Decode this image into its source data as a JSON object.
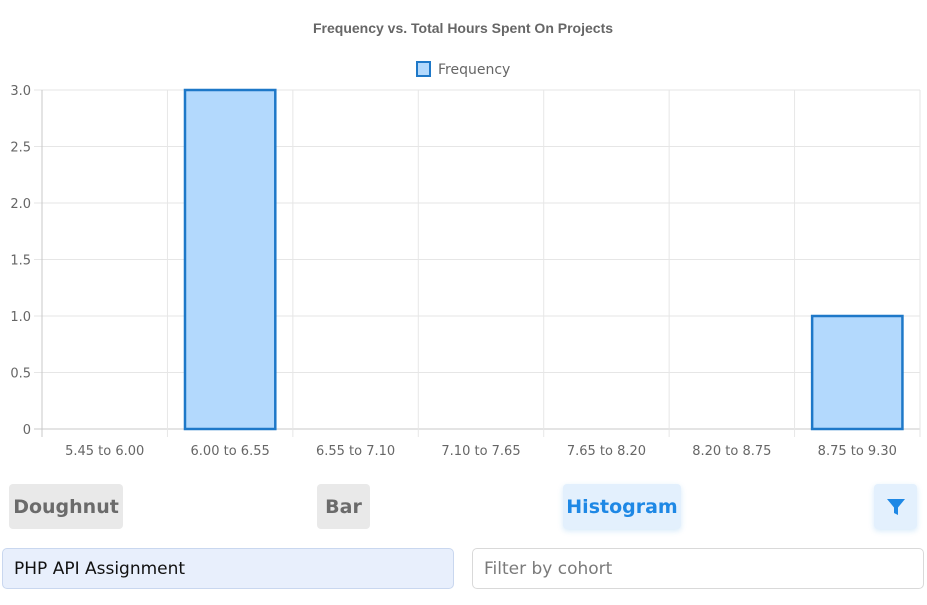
{
  "chart_data": {
    "type": "bar",
    "title": "Frequency vs. Total Hours Spent On Projects",
    "categories": [
      "5.45 to 6.00",
      "6.00 to 6.55",
      "6.55 to 7.10",
      "7.10 to 7.65",
      "7.65 to 8.20",
      "8.20 to 8.75",
      "8.75 to 9.30"
    ],
    "series": [
      {
        "name": "Frequency",
        "values": [
          0,
          3,
          0,
          0,
          0,
          0,
          1
        ]
      }
    ],
    "y_ticks": [
      "0",
      "0.5",
      "1.0",
      "1.5",
      "2.0",
      "2.5",
      "3.0"
    ],
    "ylim": [
      0,
      3
    ],
    "grid": true,
    "legend": "top-center",
    "colors": {
      "fill": "#b3d9fd",
      "stroke": "#1e78c8"
    }
  },
  "controls": {
    "doughnut_label": "Doughnut",
    "bar_label": "Bar",
    "histogram_label": "Histogram",
    "filter_icon": "filter-icon",
    "selected_value": "PHP API Assignment",
    "cohort_placeholder": "Filter by cohort"
  }
}
